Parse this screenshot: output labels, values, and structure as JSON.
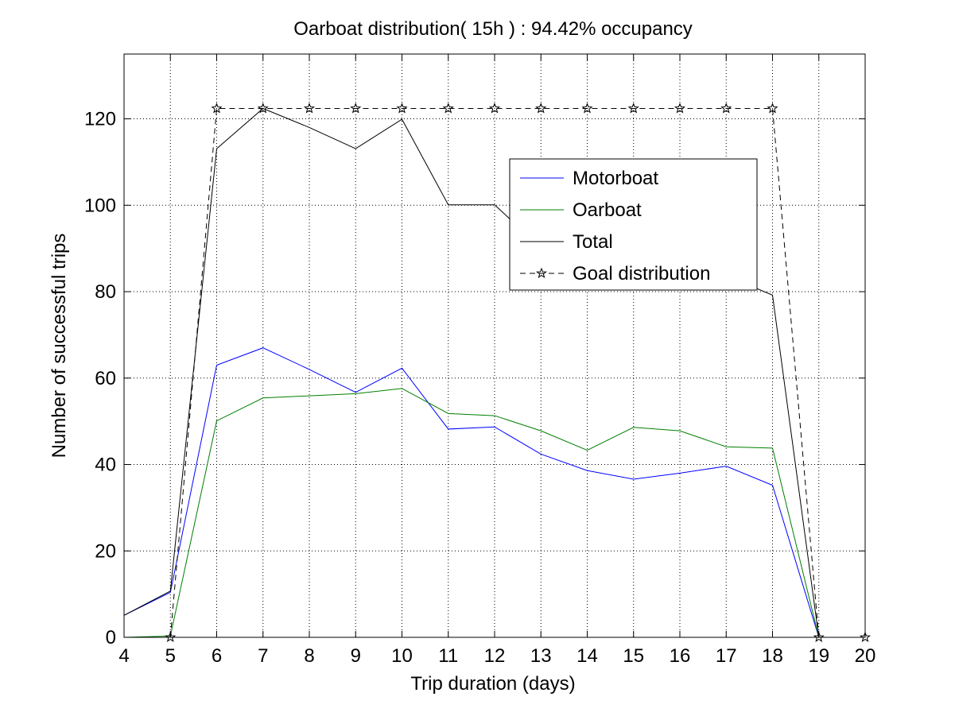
{
  "chart_data": {
    "type": "line",
    "title": "Oarboat distribution( 15h ) : 94.42% occupancy",
    "xlabel": "Trip duration (days)",
    "ylabel": "Number of successful trips",
    "xlim": [
      4,
      20
    ],
    "ylim": [
      0,
      135
    ],
    "x_ticks": [
      4,
      5,
      6,
      7,
      8,
      9,
      10,
      11,
      12,
      13,
      14,
      15,
      16,
      17,
      18,
      19,
      20
    ],
    "y_ticks": [
      0,
      20,
      40,
      60,
      80,
      100,
      120
    ],
    "grid": true,
    "legend_position": "upper-right",
    "series": [
      {
        "name": "Motorboat",
        "color": "#0000ff",
        "style": "solid",
        "marker": "none",
        "x": [
          4,
          5,
          6,
          7,
          8,
          9,
          10,
          11,
          12,
          13,
          14,
          15,
          16,
          17,
          18,
          19
        ],
        "values": [
          5.1,
          10.4,
          63,
          67,
          62,
          56.7,
          62.3,
          48.2,
          48.7,
          42.4,
          38.6,
          36.6,
          38,
          39.6,
          35.2,
          0
        ]
      },
      {
        "name": "Oarboat",
        "color": "#007f00",
        "style": "solid",
        "marker": "none",
        "x": [
          4,
          5,
          6,
          7,
          8,
          9,
          10,
          11,
          12,
          13,
          14,
          15,
          16,
          17,
          18,
          19
        ],
        "values": [
          0,
          0.3,
          50.1,
          55.4,
          55.9,
          56.4,
          57.6,
          51.8,
          51.3,
          47.8,
          43.3,
          48.6,
          47.8,
          44.1,
          43.8,
          0
        ]
      },
      {
        "name": "Total",
        "color": "#000000",
        "style": "solid",
        "marker": "none",
        "x": [
          4,
          5,
          6,
          7,
          8,
          9,
          10,
          11,
          12,
          13,
          14,
          15,
          16,
          17,
          18,
          19
        ],
        "values": [
          5.1,
          10.7,
          113.1,
          122.4,
          118,
          113.1,
          119.9,
          100.1,
          100.1,
          90.2,
          82,
          85.2,
          85.8,
          83.7,
          79.2,
          0
        ]
      },
      {
        "name": "Goal distribution",
        "color": "#000000",
        "style": "dashed",
        "marker": "star",
        "x": [
          5,
          6,
          7,
          8,
          9,
          10,
          11,
          12,
          13,
          14,
          15,
          16,
          17,
          18,
          19,
          20
        ],
        "values": [
          0,
          122.4,
          122.4,
          122.4,
          122.4,
          122.4,
          122.4,
          122.4,
          122.4,
          122.4,
          122.4,
          122.4,
          122.4,
          122.4,
          0,
          0
        ]
      }
    ]
  }
}
